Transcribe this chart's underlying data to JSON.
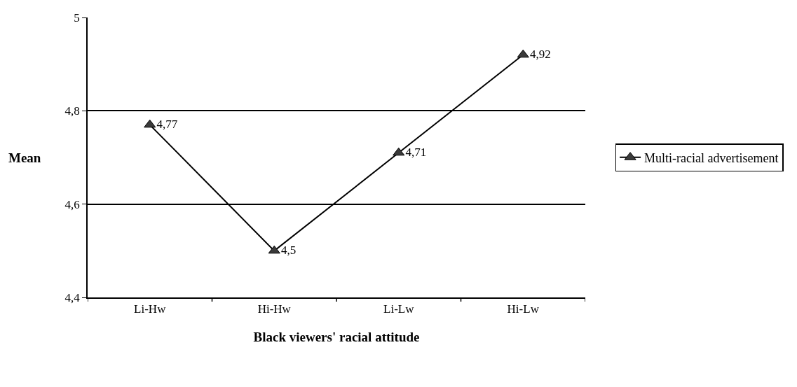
{
  "chart_data": {
    "type": "line",
    "xlabel": "Black viewers' racial attitude",
    "ylabel": "Mean",
    "categories": [
      "Li-Hw",
      "Hi-Hw",
      "Li-Lw",
      "Hi-Lw"
    ],
    "series": [
      {
        "name": "Multi-racial advertisement",
        "color": "#3a3a3a",
        "values": [
          4.77,
          4.5,
          4.71,
          4.92
        ],
        "value_labels": [
          "4,77",
          "4,5",
          "4,71",
          "4,92"
        ]
      }
    ],
    "ylim": [
      4.4,
      5
    ],
    "yticks": [
      {
        "value": 4.4,
        "label": "4,4"
      },
      {
        "value": 4.6,
        "label": "4,6"
      },
      {
        "value": 4.8,
        "label": "4,8"
      },
      5
    ],
    "grid": "y",
    "legend": "right",
    "marker": "triangle",
    "line_style": "solid"
  }
}
